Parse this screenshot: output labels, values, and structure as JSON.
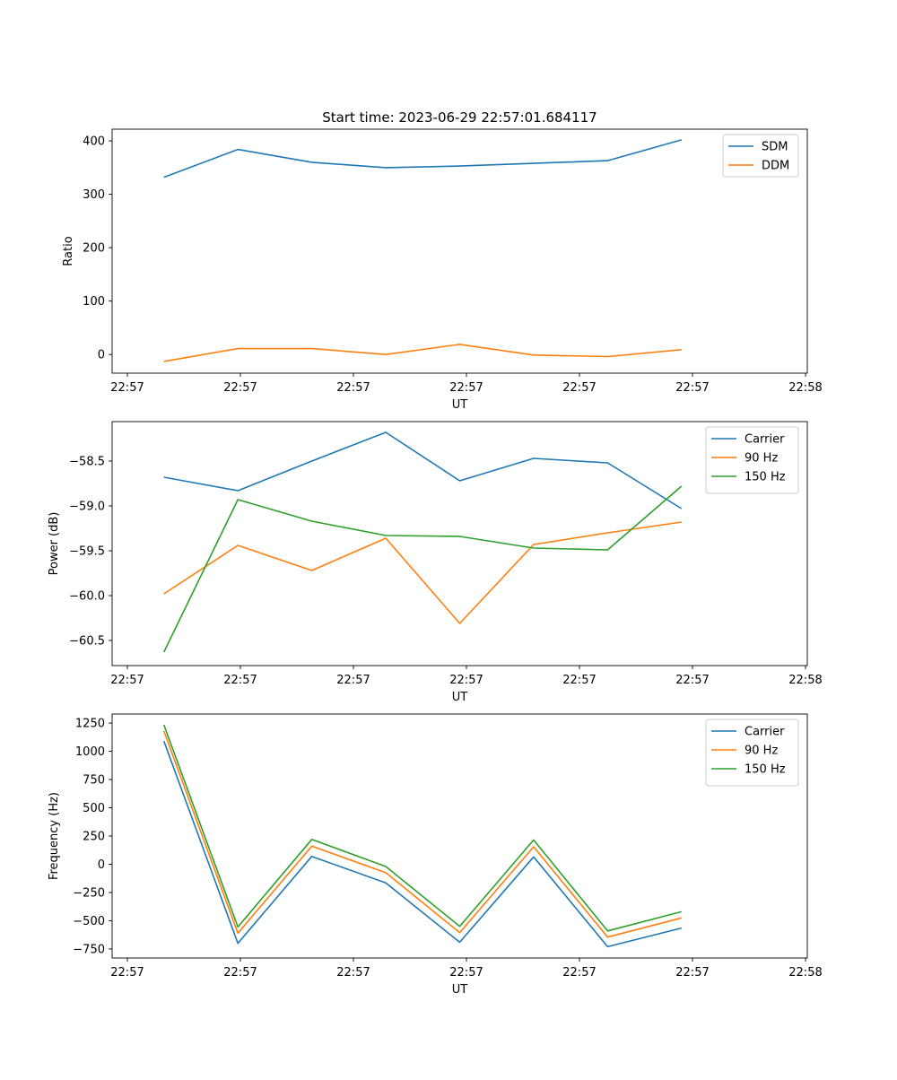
{
  "figure": {
    "title": "Start time: 2023-06-29 22:57:01.684117"
  },
  "chart_data": [
    {
      "type": "line",
      "title": "Start time: 2023-06-29 22:57:01.684117",
      "xlabel": "UT",
      "ylabel": "Ratio",
      "x_tick_labels": [
        "22:57",
        "22:57",
        "22:57",
        "22:57",
        "22:57",
        "22:57",
        "22:58"
      ],
      "x": [
        1,
        2,
        3,
        4,
        5,
        6,
        7,
        8
      ],
      "xlim": [
        0.3,
        9.7
      ],
      "ylim": [
        -35,
        422
      ],
      "y_ticks": [
        0,
        100,
        200,
        300,
        400
      ],
      "y_tick_labels": [
        "0",
        "100",
        "200",
        "300",
        "400"
      ],
      "legend": "top-right",
      "series": [
        {
          "name": "SDM",
          "color": "#1f77b4",
          "values": [
            332,
            384,
            360,
            350,
            353,
            358,
            363,
            402
          ]
        },
        {
          "name": "DDM",
          "color": "#ff7f0e",
          "values": [
            -13,
            11,
            11,
            0,
            19,
            -1,
            -4,
            9
          ]
        }
      ]
    },
    {
      "type": "line",
      "xlabel": "UT",
      "ylabel": "Power (dB)",
      "x_tick_labels": [
        "22:57",
        "22:57",
        "22:57",
        "22:57",
        "22:57",
        "22:57",
        "22:58"
      ],
      "x": [
        1,
        2,
        3,
        4,
        5,
        6,
        7,
        8
      ],
      "xlim": [
        0.3,
        9.7
      ],
      "ylim": [
        -60.78,
        -58.06
      ],
      "y_ticks": [
        -58.5,
        -59.0,
        -59.5,
        -60.0,
        -60.5
      ],
      "y_tick_labels": [
        "−58.5",
        "−59.0",
        "−59.5",
        "−60.0",
        "−60.5"
      ],
      "legend": "top-right",
      "series": [
        {
          "name": "Carrier",
          "color": "#1f77b4",
          "values": [
            -58.68,
            -58.83,
            -58.5,
            -58.18,
            -58.72,
            -58.47,
            -58.52,
            -59.03
          ]
        },
        {
          "name": "90 Hz",
          "color": "#ff7f0e",
          "values": [
            -59.98,
            -59.44,
            -59.72,
            -59.36,
            -60.31,
            -59.43,
            -59.3,
            -59.18
          ]
        },
        {
          "name": "150 Hz",
          "color": "#2ca02c",
          "values": [
            -60.63,
            -58.93,
            -59.17,
            -59.33,
            -59.34,
            -59.47,
            -59.49,
            -58.78
          ]
        }
      ]
    },
    {
      "type": "line",
      "xlabel": "UT",
      "ylabel": "Frequency (Hz)",
      "x_tick_labels": [
        "22:57",
        "22:57",
        "22:57",
        "22:57",
        "22:57",
        "22:57",
        "22:58"
      ],
      "x": [
        1,
        2,
        3,
        4,
        5,
        6,
        7,
        8
      ],
      "xlim": [
        0.3,
        9.7
      ],
      "ylim": [
        -830,
        1330
      ],
      "y_ticks": [
        1250,
        1000,
        750,
        500,
        250,
        0,
        -250,
        -500,
        -750
      ],
      "y_tick_labels": [
        "1250",
        "1000",
        "750",
        "500",
        "250",
        "0",
        "−250",
        "−500",
        "−750"
      ],
      "legend": "top-right",
      "series": [
        {
          "name": "Carrier",
          "color": "#1f77b4",
          "values": [
            1090,
            -700,
            70,
            -165,
            -690,
            65,
            -730,
            -565
          ]
        },
        {
          "name": "90 Hz",
          "color": "#ff7f0e",
          "values": [
            1180,
            -610,
            160,
            -75,
            -605,
            155,
            -645,
            -475
          ]
        },
        {
          "name": "150 Hz",
          "color": "#2ca02c",
          "values": [
            1235,
            -555,
            220,
            -20,
            -550,
            215,
            -590,
            -420
          ]
        }
      ]
    }
  ]
}
